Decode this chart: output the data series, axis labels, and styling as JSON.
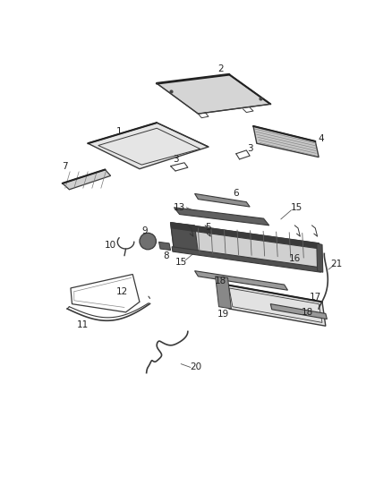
{
  "bg_color": "#ffffff",
  "line_color": "#3a3a3a",
  "fill_light": "#e8e8e8",
  "fill_mid": "#c0c0c0",
  "fill_dark": "#888888",
  "fill_darker": "#555555",
  "label_fs": 7.5
}
